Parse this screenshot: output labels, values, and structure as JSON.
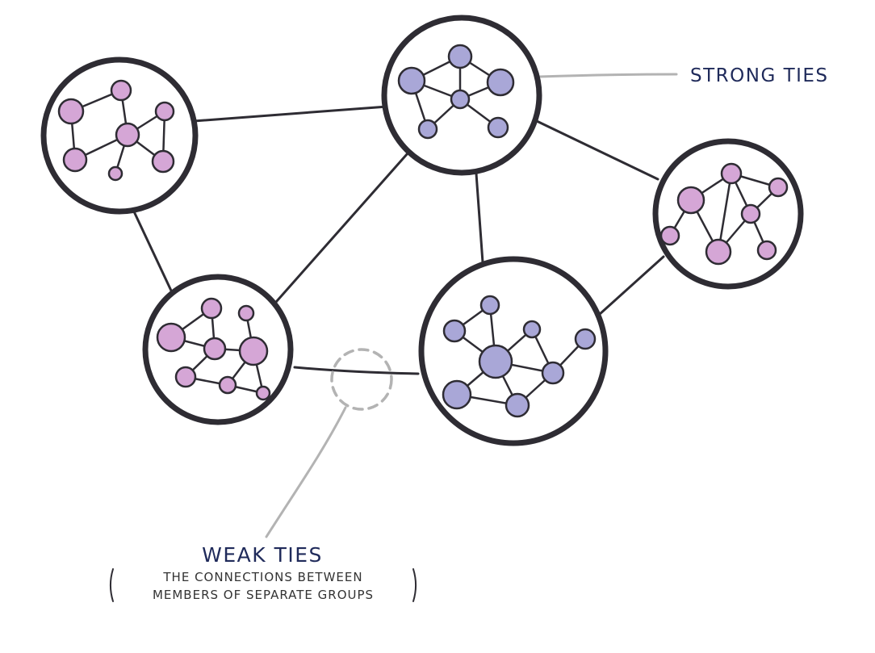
{
  "labels": {
    "strong_ties": "STRONG TIES",
    "weak_ties": "WEAK TIES",
    "weak_desc_line1": "THE CONNECTIONS BETWEEN",
    "weak_desc_line2": "MEMBERS OF SEPARATE GROUPS"
  },
  "colors": {
    "outline": "#2e2c33",
    "pink_node": "#d5a6d6",
    "purple_node": "#a9a7d7",
    "callout": "#b3b3b3",
    "label_text": "#1f2a5a"
  },
  "groups": [
    {
      "id": "top-left",
      "node_color": "pink"
    },
    {
      "id": "top-center",
      "node_color": "purple"
    },
    {
      "id": "right",
      "node_color": "pink"
    },
    {
      "id": "bottom-left",
      "node_color": "pink"
    },
    {
      "id": "bottom-center",
      "node_color": "purple"
    }
  ]
}
